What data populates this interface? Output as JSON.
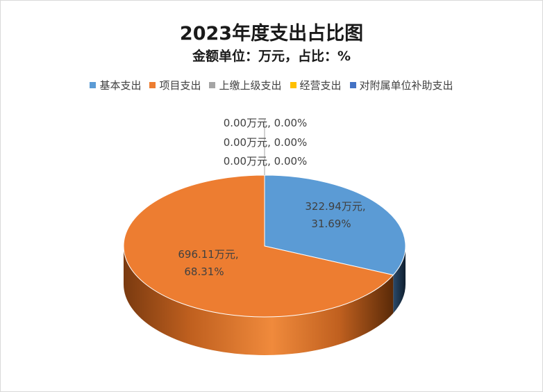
{
  "chart_data": {
    "type": "pie",
    "title": "2023年度支出占比图",
    "subtitle": "金额单位：万元，占比：%",
    "legend_position": "top",
    "series": [
      {
        "name": "基本支出",
        "value": 322.94,
        "percent": 31.69,
        "color": "#5B9BD5",
        "label_line1": "322.94万元,",
        "label_line2": "31.69%"
      },
      {
        "name": "项目支出",
        "value": 696.11,
        "percent": 68.31,
        "color": "#ED7D31",
        "label_line1": "696.11万元,",
        "label_line2": "68.31%"
      },
      {
        "name": "上缴上级支出",
        "value": 0.0,
        "percent": 0.0,
        "color": "#A5A5A5",
        "label_line1": "0.00万元, 0.00%"
      },
      {
        "name": "经营支出",
        "value": 0.0,
        "percent": 0.0,
        "color": "#FFC000",
        "label_line1": "0.00万元, 0.00%"
      },
      {
        "name": "对附属单位补助支出",
        "value": 0.0,
        "percent": 0.0,
        "color": "#4472C4",
        "label_line1": "0.00万元, 0.00%"
      }
    ]
  }
}
